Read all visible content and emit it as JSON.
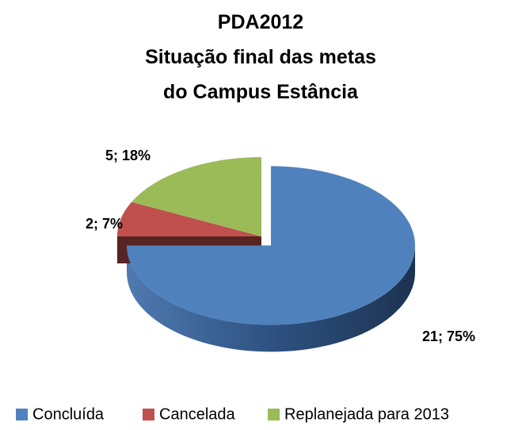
{
  "chart_data": {
    "type": "pie",
    "title": [
      "PDA2012",
      "Situação final das metas",
      "do Campus Estância"
    ],
    "categories": [
      "Concluída",
      "Cancelada",
      "Replanejada para 2013"
    ],
    "values": [
      21,
      2,
      5
    ],
    "value_labels": [
      "21; 75%",
      "2; 7%",
      "5; 18%"
    ],
    "colors": [
      "#4f81bd",
      "#c0504d",
      "#9bbb59"
    ],
    "legend": "bottom"
  }
}
